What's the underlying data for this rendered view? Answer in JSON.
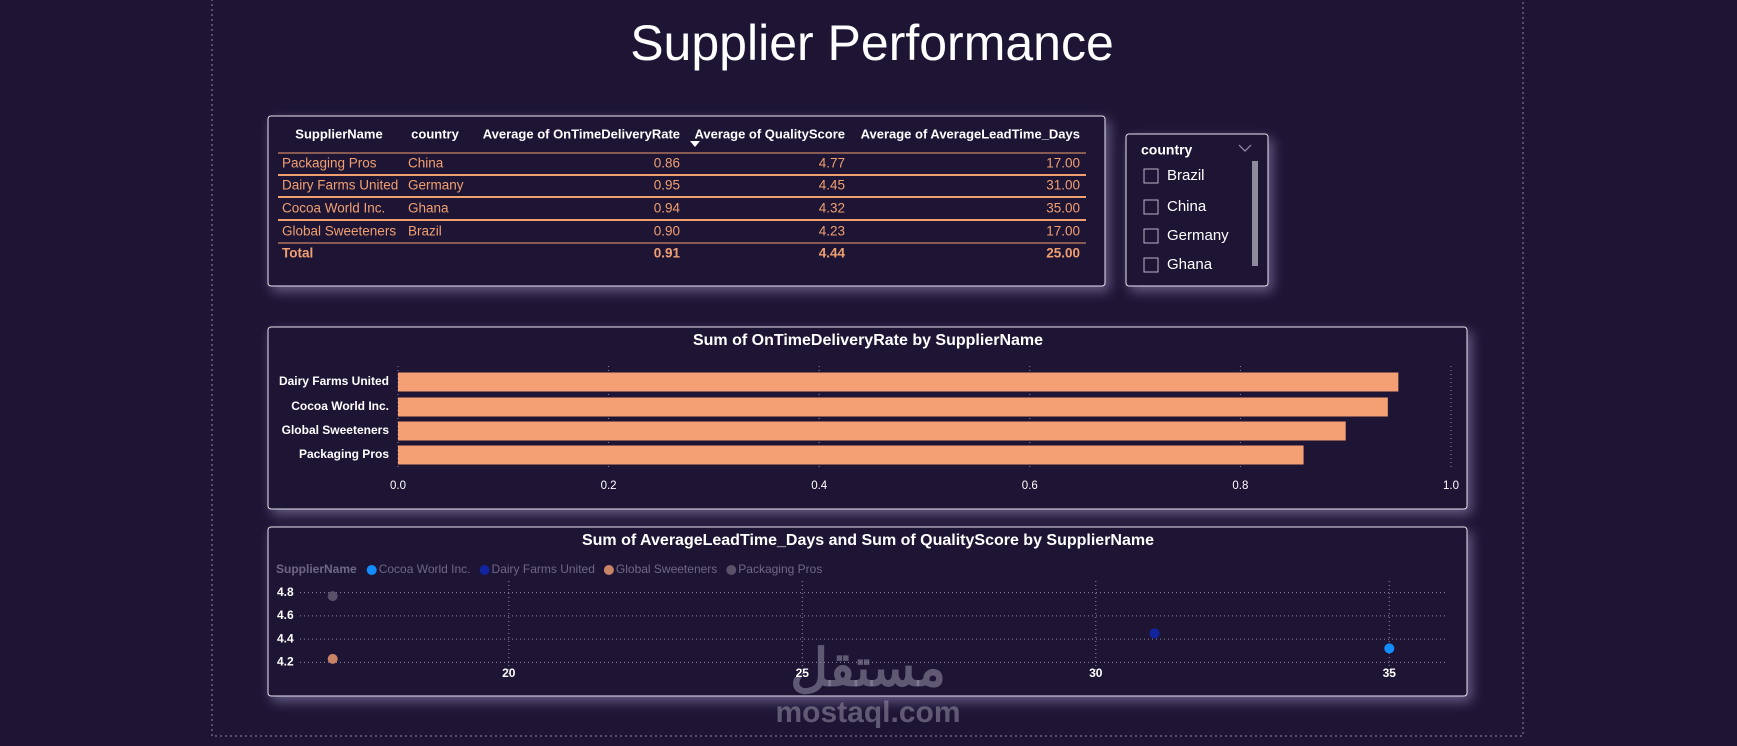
{
  "title": "Supplier Performance",
  "table": {
    "columns": [
      "SupplierName",
      "country",
      "Average of OnTimeDeliveryRate",
      "Average of QualityScore",
      "Average of AverageLeadTime_Days"
    ],
    "rows": [
      [
        "Packaging Pros",
        "China",
        "0.86",
        "4.77",
        "17.00"
      ],
      [
        "Dairy Farms United",
        "Germany",
        "0.95",
        "4.45",
        "31.00"
      ],
      [
        "Cocoa World Inc.",
        "Ghana",
        "0.94",
        "4.32",
        "35.00"
      ],
      [
        "Global Sweeteners",
        "Brazil",
        "0.90",
        "4.23",
        "17.00"
      ]
    ],
    "total": {
      "label": "Total",
      "values": [
        "0.91",
        "4.44",
        "25.00"
      ]
    }
  },
  "slicer": {
    "title": "country",
    "items": [
      "Brazil",
      "China",
      "Germany",
      "Ghana"
    ]
  },
  "chart_data": [
    {
      "type": "bar",
      "orientation": "horizontal",
      "title": "Sum of OnTimeDeliveryRate by SupplierName",
      "categories": [
        "Dairy Farms United",
        "Cocoa World Inc.",
        "Global Sweeteners",
        "Packaging Pros"
      ],
      "values": [
        0.95,
        0.94,
        0.9,
        0.86
      ],
      "color": "#f4a074",
      "xlim": [
        0,
        1
      ],
      "xticks": [
        {
          "value": 0,
          "label": "0.0"
        },
        0.2,
        0.4,
        0.6,
        0.8,
        {
          "value": 1,
          "label": "1.0"
        }
      ],
      "grid": true
    },
    {
      "type": "scatter",
      "title": "Sum of AverageLeadTime_Days and Sum of QualityScore by SupplierName",
      "legend_title": "SupplierName",
      "series": [
        {
          "name": "Cocoa World Inc.",
          "color": "#118dff",
          "x": [
            35
          ],
          "values": [
            4.32
          ]
        },
        {
          "name": "Dairy Farms United",
          "color": "#12239e",
          "x": [
            31
          ],
          "values": [
            4.45
          ]
        },
        {
          "name": "Global Sweeteners",
          "color": "#c98466",
          "x": [
            17
          ],
          "values": [
            4.23
          ]
        },
        {
          "name": "Packaging Pros",
          "color": "#5a5068",
          "x": [
            17
          ],
          "values": [
            4.77
          ]
        }
      ],
      "xlim": [
        16,
        36
      ],
      "xticks": [
        20,
        25,
        30,
        35
      ],
      "ylim": [
        4.1,
        4.9
      ],
      "yticks": [
        4.8,
        4.6,
        4.4,
        4.2
      ],
      "grid": true
    }
  ],
  "watermark": {
    "arabic": "مستقل",
    "latin": "mostaql.com"
  }
}
